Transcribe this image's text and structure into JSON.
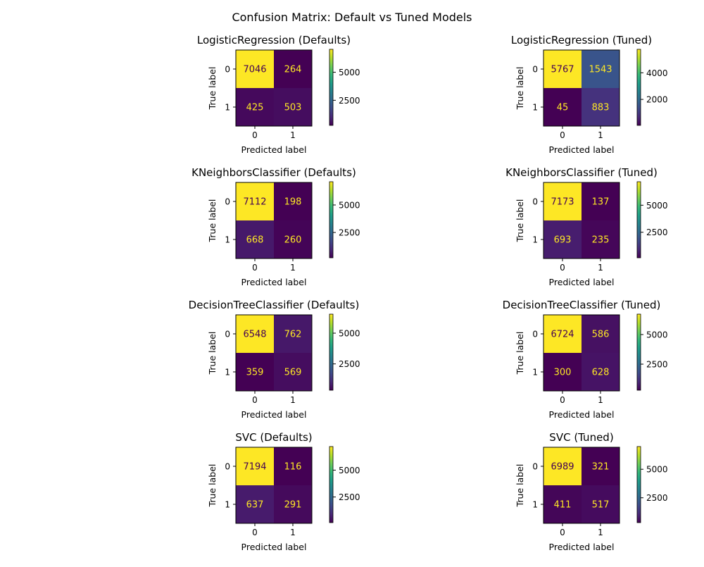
{
  "figure": {
    "title": "Confusion Matrix: Default vs Tuned Models"
  },
  "colors": {
    "viridis": [
      "#440154",
      "#482878",
      "#3e4989",
      "#31688e",
      "#26828e",
      "#1f9e89",
      "#35b779",
      "#6ece58",
      "#b5de2b",
      "#fde725"
    ],
    "text_on_dark": "#fde725",
    "text_on_light": "#440154"
  },
  "chart_data": [
    {
      "type": "heatmap",
      "title": "LogisticRegression (Defaults)",
      "xlabel": "Predicted label",
      "ylabel": "True label",
      "xticks": [
        "0",
        "1"
      ],
      "yticks": [
        "0",
        "1"
      ],
      "matrix": [
        [
          7046,
          264
        ],
        [
          425,
          503
        ]
      ],
      "colorbar": {
        "vmin": 264,
        "vmax": 7046,
        "ticks": [
          2500,
          5000
        ]
      }
    },
    {
      "type": "heatmap",
      "title": "LogisticRegression (Tuned)",
      "xlabel": "Predicted label",
      "ylabel": "True label",
      "xticks": [
        "0",
        "1"
      ],
      "yticks": [
        "0",
        "1"
      ],
      "matrix": [
        [
          5767,
          1543
        ],
        [
          45,
          883
        ]
      ],
      "colorbar": {
        "vmin": 45,
        "vmax": 5767,
        "ticks": [
          2000,
          4000
        ]
      }
    },
    {
      "type": "heatmap",
      "title": "KNeighborsClassifier (Defaults)",
      "xlabel": "Predicted label",
      "ylabel": "True label",
      "xticks": [
        "0",
        "1"
      ],
      "yticks": [
        "0",
        "1"
      ],
      "matrix": [
        [
          7112,
          198
        ],
        [
          668,
          260
        ]
      ],
      "colorbar": {
        "vmin": 198,
        "vmax": 7112,
        "ticks": [
          2500,
          5000
        ]
      }
    },
    {
      "type": "heatmap",
      "title": "KNeighborsClassifier (Tuned)",
      "xlabel": "Predicted label",
      "ylabel": "True label",
      "xticks": [
        "0",
        "1"
      ],
      "yticks": [
        "0",
        "1"
      ],
      "matrix": [
        [
          7173,
          137
        ],
        [
          693,
          235
        ]
      ],
      "colorbar": {
        "vmin": 137,
        "vmax": 7173,
        "ticks": [
          2500,
          5000
        ]
      }
    },
    {
      "type": "heatmap",
      "title": "DecisionTreeClassifier (Defaults)",
      "xlabel": "Predicted label",
      "ylabel": "True label",
      "xticks": [
        "0",
        "1"
      ],
      "yticks": [
        "0",
        "1"
      ],
      "matrix": [
        [
          6548,
          762
        ],
        [
          359,
          569
        ]
      ],
      "colorbar": {
        "vmin": 359,
        "vmax": 6548,
        "ticks": [
          2500,
          5000
        ]
      }
    },
    {
      "type": "heatmap",
      "title": "DecisionTreeClassifier (Tuned)",
      "xlabel": "Predicted label",
      "ylabel": "True label",
      "xticks": [
        "0",
        "1"
      ],
      "yticks": [
        "0",
        "1"
      ],
      "matrix": [
        [
          6724,
          586
        ],
        [
          300,
          628
        ]
      ],
      "colorbar": {
        "vmin": 300,
        "vmax": 6724,
        "ticks": [
          2500,
          5000
        ]
      }
    },
    {
      "type": "heatmap",
      "title": "SVC (Defaults)",
      "xlabel": "Predicted label",
      "ylabel": "True label",
      "xticks": [
        "0",
        "1"
      ],
      "yticks": [
        "0",
        "1"
      ],
      "matrix": [
        [
          7194,
          116
        ],
        [
          637,
          291
        ]
      ],
      "colorbar": {
        "vmin": 116,
        "vmax": 7194,
        "ticks": [
          2500,
          5000
        ]
      }
    },
    {
      "type": "heatmap",
      "title": "SVC (Tuned)",
      "xlabel": "Predicted label",
      "ylabel": "True label",
      "xticks": [
        "0",
        "1"
      ],
      "yticks": [
        "0",
        "1"
      ],
      "matrix": [
        [
          6989,
          321
        ],
        [
          411,
          517
        ]
      ],
      "colorbar": {
        "vmin": 321,
        "vmax": 6989,
        "ticks": [
          2500,
          5000
        ]
      }
    }
  ]
}
